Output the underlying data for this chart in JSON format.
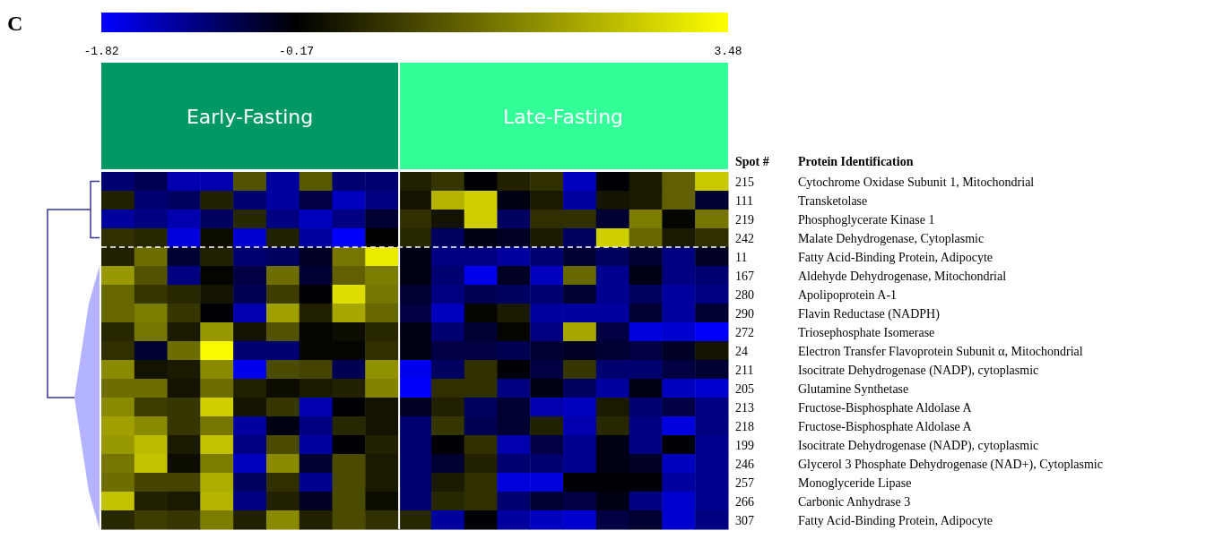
{
  "chart_data": {
    "type": "heatmap",
    "categories": [
      null,
      null,
      null,
      null,
      null,
      null,
      null,
      null,
      null,
      null,
      null,
      null,
      null,
      null,
      null,
      null,
      null,
      null,
      null
    ],
    "y_categories": [
      "215",
      "111",
      "219",
      "242",
      "11",
      "167",
      "280",
      "290",
      "272",
      "24",
      "211",
      "205",
      "213",
      "218",
      "199",
      "246",
      "257",
      "266",
      "307"
    ],
    "y2_categories": [
      "Cytochrome Oxidase Subunit 1, Mitochondrial",
      "Transketolase",
      "Phosphoglycerate Kinase 1",
      "Malate Dehydrogenase, Cytoplasmic",
      "Fatty Acid-Binding Protein, Adipocyte",
      "Aldehyde Dehydrogenase, Mitochondrial",
      "Apolipoprotein A-1",
      "Flavin Reductase (NADPH)",
      "Triosephosphate Isomerase",
      "Electron Transfer Flavoprotein Subunit α, Mitochondrial",
      "Isocitrate Dehydrogenase (NADP), cytoplasmic",
      "Glutamine Synthetase",
      "Fructose-Bisphosphate Aldolase A",
      "Fructose-Bisphosphate Aldolase A",
      "Isocitrate Dehydrogenase (NADP), cytoplasmic",
      "Glycerol 3 Phosphate Dehydrogenase (NAD+), Cytoplasmic",
      "Monoglyceride Lipase",
      "Carbonic Anhydrase 3",
      "Fatty Acid-Binding Protein, Adipocyte"
    ],
    "cells": [
      [
        -0.9,
        -0.7,
        -1.3,
        -1.3,
        1.0,
        -1.2,
        1.1,
        -0.9,
        -0.9,
        0.3,
        0.6,
        -0.2,
        0.3,
        0.5,
        -1.4,
        -0.2,
        0.2,
        1.2,
        2.7
      ],
      [
        0.3,
        -0.9,
        -0.8,
        0.3,
        -0.9,
        -1.2,
        -0.6,
        -1.4,
        -1.0,
        0.1,
        2.4,
        2.8,
        -0.3,
        0.2,
        -1.2,
        0.1,
        0.2,
        1.2,
        -0.5
      ],
      [
        -1.2,
        -1.0,
        -1.3,
        -0.8,
        0.4,
        -1.0,
        -1.4,
        -1.0,
        -0.5,
        0.5,
        0.1,
        2.8,
        -0.8,
        0.5,
        0.5,
        -0.5,
        1.6,
        -0.1,
        1.5
      ],
      [
        0.5,
        0.4,
        -1.6,
        0.0,
        -1.5,
        0.3,
        -1.2,
        -1.8,
        -0.17,
        0.4,
        -0.8,
        -0.3,
        -0.4,
        0.2,
        -0.8,
        2.8,
        1.3,
        0.2,
        0.5
      ],
      [
        0.3,
        1.4,
        -0.5,
        0.3,
        -0.9,
        -0.8,
        -0.4,
        1.5,
        3.2,
        -0.3,
        -1.0,
        -1.0,
        -1.2,
        -0.9,
        -0.5,
        -0.8,
        -0.5,
        -1.0,
        -0.4
      ],
      [
        2.0,
        1.0,
        -1.0,
        -0.1,
        -0.6,
        1.4,
        -0.5,
        1.2,
        1.6,
        -0.3,
        -0.9,
        -1.7,
        -0.4,
        -1.4,
        1.3,
        -1.1,
        -0.3,
        -1.0,
        -0.9
      ],
      [
        1.3,
        0.6,
        0.4,
        0.1,
        -0.7,
        0.7,
        -0.2,
        3.0,
        1.5,
        -0.5,
        -1.0,
        -0.7,
        -0.8,
        -0.9,
        -0.5,
        -1.1,
        -0.8,
        -1.2,
        -1.0
      ],
      [
        1.3,
        1.6,
        0.6,
        -0.2,
        -1.3,
        2.1,
        0.3,
        2.2,
        1.3,
        -0.6,
        -1.4,
        -0.1,
        0.2,
        -1.2,
        -1.2,
        -1.2,
        -0.5,
        -1.2,
        -0.5
      ],
      [
        0.4,
        1.5,
        0.2,
        2.0,
        0.1,
        1.0,
        -0.1,
        0.0,
        0.4,
        -0.3,
        -0.9,
        -0.5,
        -0.1,
        -1.0,
        2.2,
        -0.6,
        -1.6,
        -1.5,
        -1.8
      ],
      [
        0.5,
        -0.5,
        1.4,
        3.4,
        -0.9,
        -0.9,
        -0.1,
        -0.1,
        0.5,
        -0.3,
        -0.6,
        -0.6,
        -0.7,
        -0.5,
        -0.4,
        -0.5,
        -0.6,
        -0.4,
        0.1
      ],
      [
        1.8,
        0.1,
        0.2,
        1.8,
        -1.7,
        0.9,
        0.8,
        -0.7,
        1.9,
        -1.7,
        -0.8,
        0.5,
        -0.2,
        -0.6,
        0.6,
        -0.9,
        -0.9,
        -0.6,
        -0.5
      ],
      [
        1.4,
        1.4,
        0.1,
        1.4,
        0.3,
        0.0,
        0.2,
        0.3,
        1.7,
        -1.8,
        0.5,
        0.5,
        -1.0,
        -0.3,
        -0.8,
        -1.2,
        -0.3,
        -1.4,
        -1.5
      ],
      [
        1.8,
        0.7,
        0.6,
        2.8,
        0.1,
        0.6,
        -1.3,
        -0.2,
        0.1,
        -0.4,
        0.3,
        -0.8,
        -0.5,
        -1.3,
        -1.4,
        0.2,
        -0.9,
        -0.6,
        -1.0
      ],
      [
        2.1,
        1.8,
        0.6,
        1.5,
        -1.2,
        -0.3,
        -1.0,
        0.4,
        0.1,
        -0.9,
        0.6,
        -0.7,
        -0.5,
        0.3,
        -1.3,
        0.4,
        -1.0,
        -1.6,
        -1.0
      ],
      [
        2.0,
        2.5,
        0.2,
        2.6,
        -1.0,
        0.9,
        -1.2,
        -0.2,
        0.3,
        -0.9,
        -0.2,
        0.5,
        -1.3,
        -0.6,
        -1.1,
        -0.3,
        -1.0,
        -0.2,
        -1.1
      ],
      [
        1.5,
        2.6,
        0.0,
        1.6,
        -1.4,
        1.8,
        -0.5,
        0.9,
        0.2,
        -0.9,
        -0.5,
        0.3,
        -0.9,
        -0.9,
        -1.1,
        -0.3,
        -0.4,
        -1.4,
        -1.1
      ],
      [
        1.4,
        0.8,
        0.8,
        2.3,
        -0.8,
        0.5,
        -1.1,
        0.9,
        0.2,
        -0.9,
        0.2,
        0.5,
        -1.6,
        -1.6,
        -0.2,
        -0.2,
        -0.2,
        -1.2,
        -1.1
      ],
      [
        2.6,
        0.3,
        0.2,
        2.4,
        -1.0,
        0.3,
        -0.4,
        0.9,
        0.0,
        -0.9,
        0.4,
        0.5,
        -0.9,
        -0.5,
        -0.6,
        -0.3,
        -1.0,
        -1.5,
        -1.1
      ],
      [
        0.4,
        0.7,
        0.6,
        1.6,
        0.3,
        1.8,
        0.3,
        0.9,
        0.5,
        0.4,
        -1.2,
        -0.2,
        -1.2,
        -1.4,
        -1.5,
        -0.6,
        -0.5,
        -1.5,
        -1.0
      ]
    ],
    "clim": [
      -1.82,
      3.48
    ],
    "cticks": [
      -1.82,
      -0.17,
      3.48
    ],
    "ref_lines": [
      {
        "axis": "y",
        "value": "11",
        "color": "#ffffff",
        "line_style": "dashed"
      }
    ],
    "annotations": [
      "C",
      "Early-Fasting",
      "Late-Fasting",
      "Spot #",
      "Protein Identification"
    ]
  }
}
